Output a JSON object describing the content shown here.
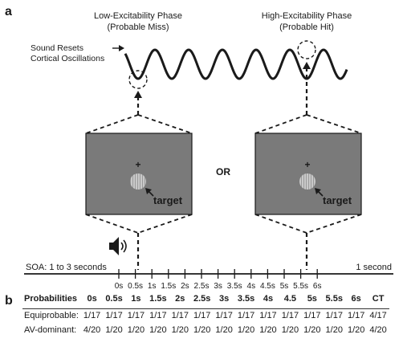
{
  "panel_a": {
    "letter": "a",
    "low_phase": {
      "title": "Low-Excitability Phase",
      "subtitle": "(Probable Miss)"
    },
    "high_phase": {
      "title": "High-Excitability Phase",
      "subtitle": "(Probable Hit)"
    },
    "reset_label": {
      "line1": "Sound Resets",
      "line2": "Cortical Oscillations"
    },
    "or_label": "OR",
    "target_label": "target",
    "fixation": "+",
    "soa_label": "SOA: 1 to 3 seconds",
    "end_label": "1 second",
    "timeline_ticks": [
      "0s",
      "0.5s",
      "1s",
      "1.5s",
      "2s",
      "2.5s",
      "3s",
      "3.5s",
      "4s",
      "4.5s",
      "5s",
      "5.5s",
      "6s"
    ],
    "colors": {
      "screen_fill": "#7a7a7a",
      "target_fill": "#bdbdbd",
      "line": "#1a1a1a"
    },
    "icons": [
      "speaker-icon"
    ]
  },
  "panel_b": {
    "letter": "b",
    "headers": [
      "Probabilities",
      "0s",
      "0.5s",
      "1s",
      "1.5s",
      "2s",
      "2.5s",
      "3s",
      "3.5s",
      "4s",
      "4.5",
      "5s",
      "5.5s",
      "6s",
      "CT"
    ],
    "rows": [
      {
        "label": "Equiprobable:",
        "cells": [
          "1/17",
          "1/17",
          "1/17",
          "1/17",
          "1/17",
          "1/17",
          "1/17",
          "1/17",
          "1/17",
          "1/17",
          "1/17",
          "1/17",
          "1/17",
          "4/17"
        ]
      },
      {
        "label": "AV-dominant:",
        "cells": [
          "4/20",
          "1/20",
          "1/20",
          "1/20",
          "1/20",
          "1/20",
          "1/20",
          "1/20",
          "1/20",
          "1/20",
          "1/20",
          "1/20",
          "1/20",
          "4/20"
        ]
      }
    ]
  }
}
